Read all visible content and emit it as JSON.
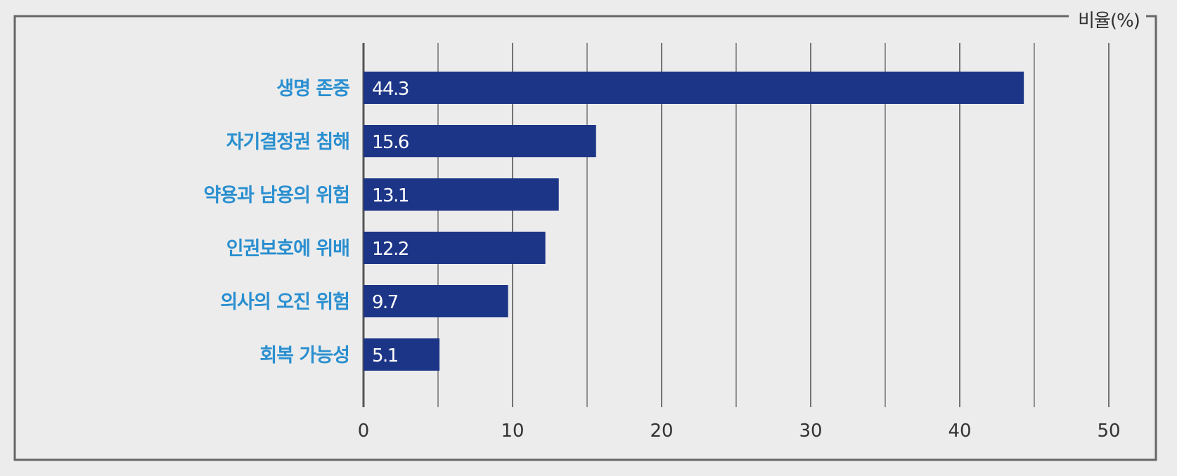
{
  "chart_data": {
    "type": "bar",
    "orientation": "horizontal",
    "unit_label": "비율(%)",
    "categories": [
      "생명 존중",
      "자기결정권 침해",
      "약용과 남용의 위험",
      "인권보호에 위배",
      "의사의 오진 위험",
      "회복 가능성"
    ],
    "values": [
      44.3,
      15.6,
      13.1,
      12.2,
      9.7,
      5.1
    ],
    "value_labels": [
      "44.3",
      "15.6",
      "13.1",
      "12.2",
      "9.7",
      "5.1"
    ],
    "xlim": [
      0,
      50
    ],
    "ticks": [
      0,
      10,
      20,
      30,
      40,
      50
    ],
    "tick_labels": [
      "0",
      "10",
      "20",
      "30",
      "40",
      "50"
    ],
    "minor_grid_step": 5,
    "grid": true,
    "colors": {
      "bar": "#1c3587",
      "category_text": "#2a8fd0",
      "value_text": "#ffffff",
      "grid": "#555555",
      "frame": "#666666",
      "background": "#ececec"
    }
  }
}
